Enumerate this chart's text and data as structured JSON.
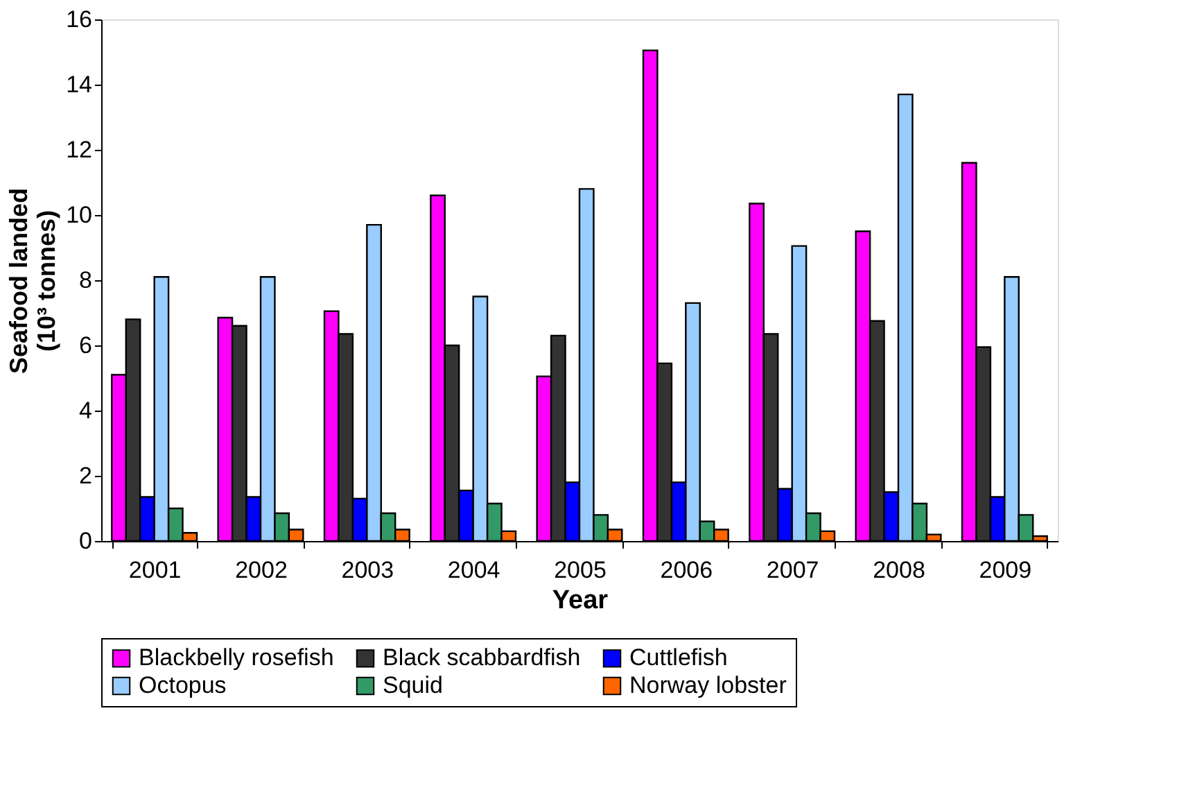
{
  "chart_data": {
    "type": "bar",
    "xlabel": "Year",
    "ylabel": "Seafood landed\n(10³ tonnes)",
    "categories": [
      "2001",
      "2002",
      "2003",
      "2004",
      "2005",
      "2006",
      "2007",
      "2008",
      "2009"
    ],
    "series": [
      {
        "name": "Blackbelly rosefish",
        "color": "#ff00ff",
        "values": [
          5.1,
          6.85,
          7.05,
          10.6,
          5.05,
          15.05,
          10.35,
          9.5,
          11.6
        ]
      },
      {
        "name": "Black scabbardfish",
        "color": "#333333",
        "values": [
          6.8,
          6.6,
          6.35,
          6.0,
          6.3,
          5.45,
          6.35,
          6.75,
          5.95
        ]
      },
      {
        "name": "Cuttlefish",
        "color": "#0000ff",
        "values": [
          1.35,
          1.35,
          1.3,
          1.55,
          1.8,
          1.8,
          1.6,
          1.5,
          1.35
        ]
      },
      {
        "name": "Octopus",
        "color": "#99ccff",
        "values": [
          8.1,
          8.1,
          9.7,
          7.5,
          10.8,
          7.3,
          9.05,
          13.7,
          8.1
        ]
      },
      {
        "name": "Squid",
        "color": "#339966",
        "values": [
          1.0,
          0.85,
          0.85,
          1.15,
          0.8,
          0.6,
          0.85,
          1.15,
          0.8
        ]
      },
      {
        "name": "Norway lobster",
        "color": "#ff6600",
        "values": [
          0.25,
          0.35,
          0.35,
          0.3,
          0.35,
          0.35,
          0.3,
          0.2,
          0.15
        ]
      }
    ],
    "ylim": [
      0,
      16
    ],
    "yticks": [
      0,
      2,
      4,
      6,
      8,
      10,
      12,
      14,
      16
    ],
    "grid": false,
    "legend": "bottom"
  }
}
